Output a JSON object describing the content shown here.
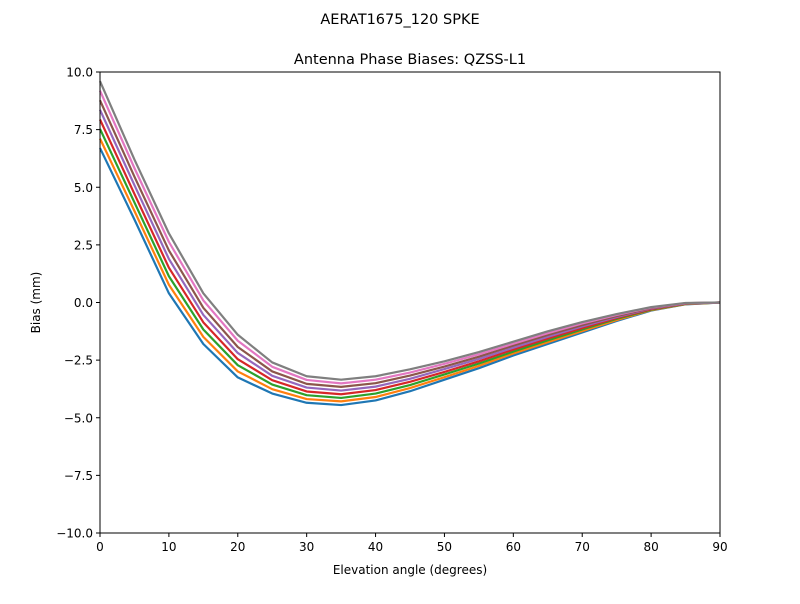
{
  "suptitle": "AERAT1675_120   SPKE",
  "chart_data": {
    "type": "line",
    "title": "Antenna Phase Biases: QZSS-L1",
    "xlabel": "Elevation angle (degrees)",
    "ylabel": "Bias (mm)",
    "xlim": [
      0,
      90
    ],
    "ylim": [
      -10,
      10
    ],
    "xticks": [
      0,
      10,
      20,
      30,
      40,
      50,
      60,
      70,
      80,
      90
    ],
    "yticks": [
      -10.0,
      -7.5,
      -5.0,
      -2.5,
      0.0,
      2.5,
      5.0,
      7.5,
      10.0
    ],
    "ytick_labels": [
      "−10.0",
      "−7.5",
      "−5.0",
      "−2.5",
      "0.0",
      "2.5",
      "5.0",
      "7.5",
      "10.0"
    ],
    "grid": false,
    "x": [
      0,
      5,
      10,
      15,
      20,
      25,
      30,
      35,
      40,
      45,
      50,
      55,
      60,
      65,
      70,
      75,
      80,
      85,
      90
    ],
    "colors": [
      "#1f77b4",
      "#ff7f0e",
      "#2ca02c",
      "#d62728",
      "#9467bd",
      "#8c564b",
      "#e377c2",
      "#7f7f7f",
      "#bcbd22",
      "#17becf"
    ],
    "series": [
      {
        "values": [
          6.7,
          3.6,
          0.4,
          -1.8,
          -3.25,
          -3.95,
          -4.35,
          -4.45,
          -4.25,
          -3.85,
          -3.35,
          -2.85,
          -2.3,
          -1.8,
          -1.3,
          -0.8,
          -0.35,
          -0.08,
          0
        ]
      },
      {
        "values": [
          7.11,
          3.97,
          0.77,
          -1.49,
          -2.99,
          -3.76,
          -4.19,
          -4.29,
          -4.1,
          -3.71,
          -3.24,
          -2.75,
          -2.21,
          -1.72,
          -1.24,
          -0.76,
          -0.33,
          -0.07,
          0
        ]
      },
      {
        "values": [
          7.53,
          4.34,
          1.14,
          -1.17,
          -2.72,
          -3.56,
          -4.02,
          -4.14,
          -3.95,
          -3.58,
          -3.12,
          -2.65,
          -2.13,
          -1.64,
          -1.17,
          -0.71,
          -0.31,
          -0.06,
          0
        ]
      },
      {
        "values": [
          7.94,
          4.71,
          1.51,
          -0.86,
          -2.46,
          -3.37,
          -3.86,
          -3.98,
          -3.8,
          -3.44,
          -3.01,
          -2.55,
          -2.04,
          -1.56,
          -1.11,
          -0.67,
          -0.29,
          -0.05,
          0
        ]
      },
      {
        "values": [
          8.36,
          5.09,
          1.89,
          -0.54,
          -2.19,
          -3.18,
          -3.69,
          -3.82,
          -3.65,
          -3.31,
          -2.89,
          -2.45,
          -1.96,
          -1.49,
          -1.04,
          -0.63,
          -0.26,
          -0.04,
          0
        ]
      },
      {
        "values": [
          8.77,
          5.46,
          2.26,
          -0.23,
          -1.93,
          -2.99,
          -3.53,
          -3.66,
          -3.5,
          -3.17,
          -2.78,
          -2.35,
          -1.87,
          -1.41,
          -0.98,
          -0.59,
          -0.24,
          -0.03,
          0
        ]
      },
      {
        "values": [
          9.19,
          5.83,
          2.63,
          0.09,
          -1.66,
          -2.79,
          -3.36,
          -3.51,
          -3.35,
          -3.04,
          -2.66,
          -2.25,
          -1.79,
          -1.33,
          -0.91,
          -0.54,
          -0.22,
          -0.03,
          0
        ]
      },
      {
        "values": [
          9.6,
          6.2,
          3.0,
          0.4,
          -1.4,
          -2.6,
          -3.2,
          -3.35,
          -3.2,
          -2.9,
          -2.55,
          -2.15,
          -1.7,
          -1.25,
          -0.85,
          -0.5,
          -0.2,
          -0.02,
          0
        ]
      }
    ]
  }
}
